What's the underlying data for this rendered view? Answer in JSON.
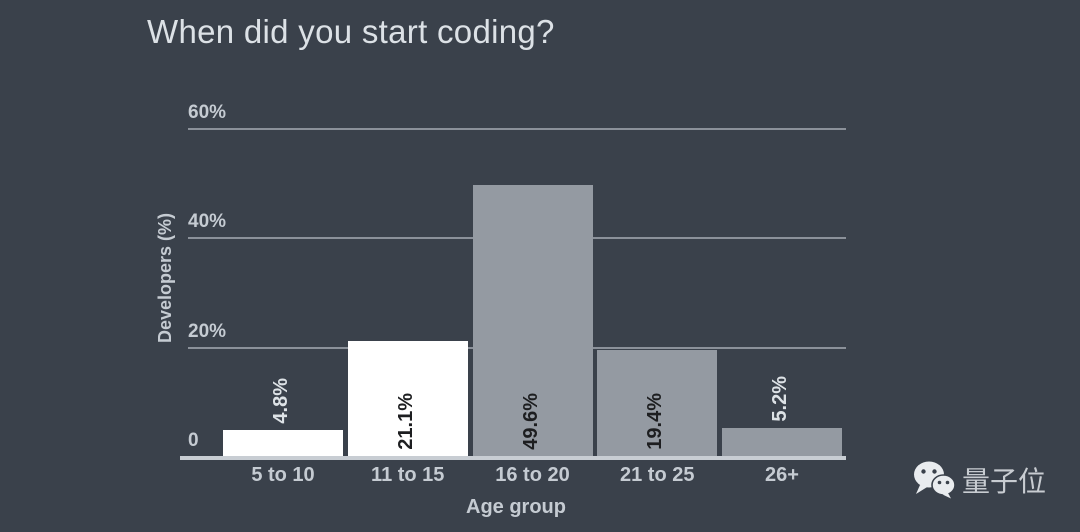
{
  "title": "When did you start coding?",
  "chart_data": {
    "type": "bar",
    "title": "When did you start coding?",
    "categories": [
      "5 to 10",
      "11 to 15",
      "16 to 20",
      "21 to 25",
      "26+"
    ],
    "values": [
      4.8,
      21.1,
      49.6,
      19.4,
      5.2
    ],
    "value_labels": [
      "4.8%",
      "21.1%",
      "49.6%",
      "19.4%",
      "5.2%"
    ],
    "bar_colors": [
      "#FFFFFF",
      "#FFFFFF",
      "#949AA2",
      "#949AA2",
      "#949AA2"
    ],
    "label_placement": [
      "above",
      "inside",
      "inside",
      "inside",
      "above"
    ],
    "xlabel": "Age group",
    "ylabel": "Developers (%)",
    "ylim": [
      0,
      60
    ],
    "y_ticks": [
      {
        "value": 0,
        "label": "0"
      },
      {
        "value": 20,
        "label": "20%"
      },
      {
        "value": 40,
        "label": "40%"
      },
      {
        "value": 60,
        "label": "60%"
      }
    ],
    "grid": true,
    "legend": "none",
    "value_label_rotation": "vertical"
  },
  "colors": {
    "background": "#3A414B",
    "bar_highlight": "#FFFFFF",
    "bar_default": "#949AA2",
    "axis_text": "#C5CBD2",
    "value_label_inside": "#1D1E20",
    "value_label_above": "#DDE2E6",
    "baseline": "#C8CDD3"
  },
  "watermark": {
    "icon": "wechat-icon",
    "text": "量子位"
  }
}
